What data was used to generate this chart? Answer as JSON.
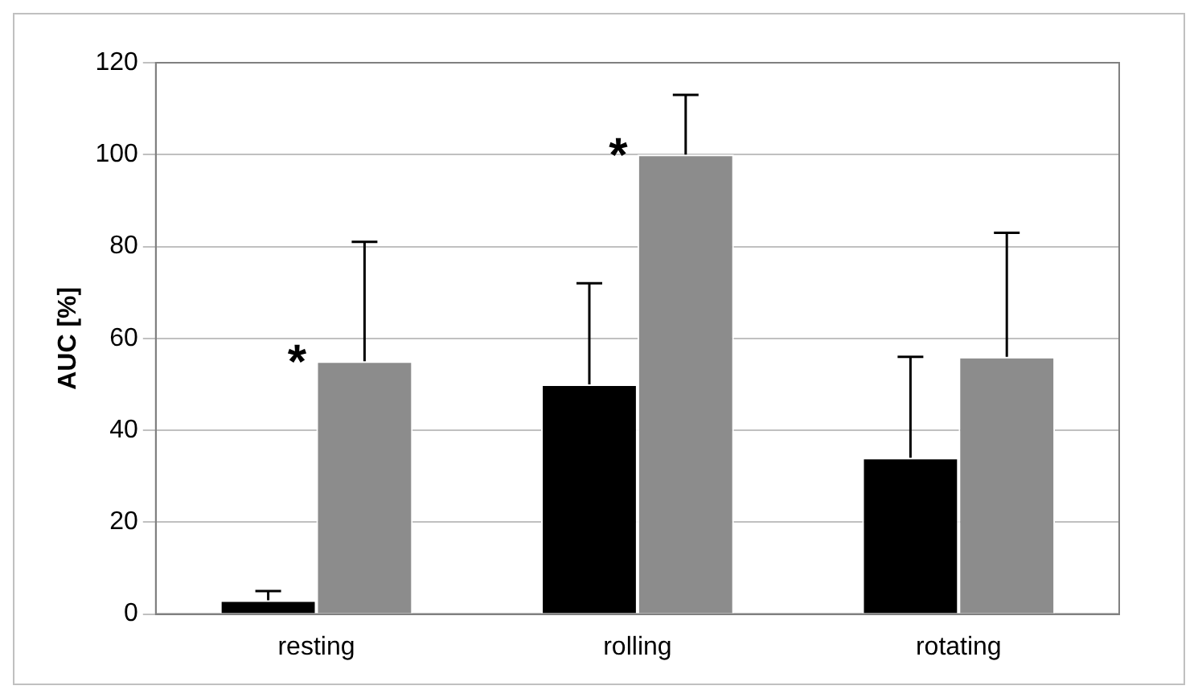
{
  "chart_data": {
    "type": "bar",
    "ylabel": "AUC [%]",
    "categories": [
      "resting",
      "rolling",
      "rotating"
    ],
    "series": [
      {
        "color": "#000000",
        "values": [
          3,
          50,
          34
        ],
        "errors": [
          [
            3,
            5
          ],
          [
            50,
            72
          ],
          [
            34,
            56
          ]
        ]
      },
      {
        "color": "#8c8c8c",
        "values": [
          55,
          100,
          56
        ],
        "errors": [
          [
            55,
            81
          ],
          [
            100,
            113
          ],
          [
            56,
            83
          ]
        ]
      }
    ],
    "ylim": [
      0,
      120
    ],
    "yticks": [
      0,
      20,
      40,
      60,
      80,
      100,
      120
    ],
    "grid": "y",
    "legend": false,
    "annotations": [
      "*",
      "*"
    ]
  }
}
